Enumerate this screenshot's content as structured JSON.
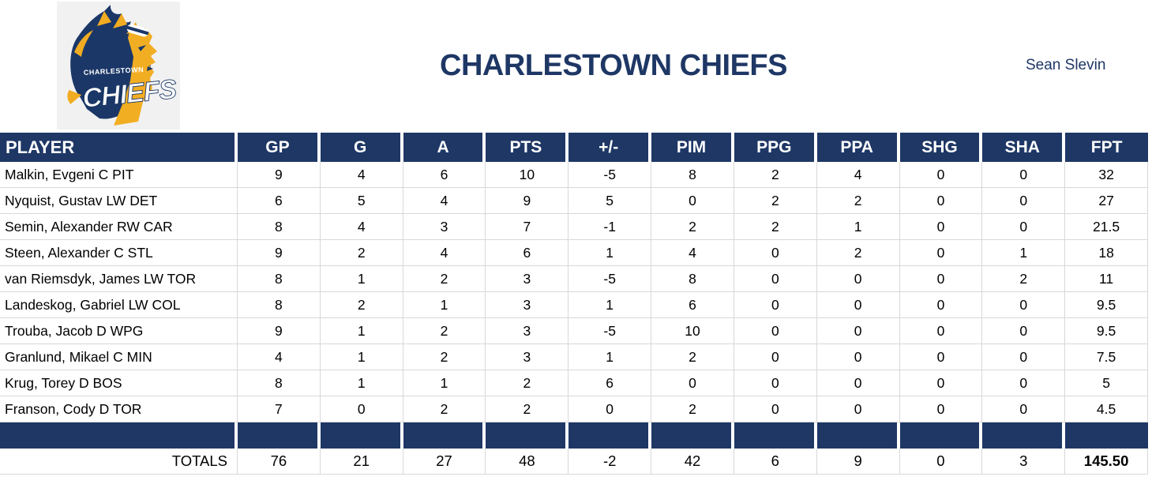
{
  "header": {
    "title": "CHARLESTOWN CHIEFS",
    "manager": "Sean Slevin"
  },
  "logo": {
    "team": "Charlestown Chiefs",
    "text_top": "CHARLESTOWN",
    "text_main": "CHIEFS"
  },
  "colors": {
    "navy": "#1E3765",
    "gold": "#F2AC21",
    "grid": "#d8d8d8"
  },
  "table": {
    "columns": [
      "PLAYER",
      "GP",
      "G",
      "A",
      "PTS",
      "+/-",
      "PIM",
      "PPG",
      "PPA",
      "SHG",
      "SHA",
      "FPT"
    ],
    "rows": [
      {
        "player": "Malkin, Evgeni C PIT",
        "stats": [
          9,
          4,
          6,
          10,
          -5,
          8,
          2,
          4,
          0,
          0,
          32
        ]
      },
      {
        "player": "Nyquist, Gustav LW DET",
        "stats": [
          6,
          5,
          4,
          9,
          5,
          0,
          2,
          2,
          0,
          0,
          27
        ]
      },
      {
        "player": "Semin, Alexander RW CAR",
        "stats": [
          8,
          4,
          3,
          7,
          -1,
          2,
          2,
          1,
          0,
          0,
          21.5
        ]
      },
      {
        "player": "Steen, Alexander C STL",
        "stats": [
          9,
          2,
          4,
          6,
          1,
          4,
          0,
          2,
          0,
          1,
          18
        ]
      },
      {
        "player": "van Riemsdyk, James LW TOR",
        "stats": [
          8,
          1,
          2,
          3,
          -5,
          8,
          0,
          0,
          0,
          2,
          11
        ]
      },
      {
        "player": "Landeskog, Gabriel LW COL",
        "stats": [
          8,
          2,
          1,
          3,
          1,
          6,
          0,
          0,
          0,
          0,
          9.5
        ]
      },
      {
        "player": "Trouba, Jacob D WPG",
        "stats": [
          9,
          1,
          2,
          3,
          -5,
          10,
          0,
          0,
          0,
          0,
          9.5
        ]
      },
      {
        "player": "Granlund, Mikael C MIN",
        "stats": [
          4,
          1,
          2,
          3,
          1,
          2,
          0,
          0,
          0,
          0,
          7.5
        ]
      },
      {
        "player": "Krug, Torey D BOS",
        "stats": [
          8,
          1,
          1,
          2,
          6,
          0,
          0,
          0,
          0,
          0,
          5
        ]
      },
      {
        "player": "Franson, Cody D TOR",
        "stats": [
          7,
          0,
          2,
          2,
          0,
          2,
          0,
          0,
          0,
          0,
          4.5
        ]
      }
    ],
    "totals": {
      "label": "TOTALS",
      "stats": [
        76,
        21,
        27,
        48,
        -2,
        42,
        6,
        9,
        0,
        3,
        "145.50"
      ]
    }
  }
}
